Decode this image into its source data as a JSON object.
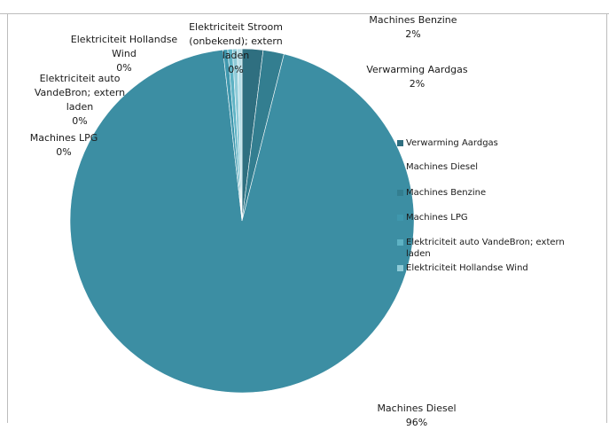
{
  "chart_data": {
    "type": "pie",
    "title": "",
    "slices": [
      {
        "label": "Machines Diesel",
        "value": 96,
        "value_label": "96%",
        "color": "#3c8ea3"
      },
      {
        "label": "Verwarming Aardgas",
        "value": 2,
        "value_label": "2%",
        "color": "#2f6f80"
      },
      {
        "label": "Machines Benzine",
        "value": 2,
        "value_label": "2%",
        "color": "#337e90"
      },
      {
        "label": "Machines LPG",
        "value": 0,
        "value_label": "0%",
        "color": "#3f97ad"
      },
      {
        "label": "Elektriciteit auto VandeBron; extern laden",
        "value": 0,
        "value_label": "0%",
        "color": "#5eb2c4"
      },
      {
        "label": "Elektriciteit Hollandse Wind",
        "value": 0,
        "value_label": "0%",
        "color": "#8fcbd8"
      },
      {
        "label": "Elektriciteit Stroom (onbekend); extern laden",
        "value": 0,
        "value_label": "0%",
        "color": "#b8dfe8"
      }
    ],
    "legend": {
      "position": "right",
      "items": [
        {
          "label": "Verwarming Aardgas",
          "color": "#2f6f80"
        },
        {
          "label": "Machines Diesel",
          "color": "#3c8ea3"
        },
        {
          "label": "Machines Benzine",
          "color": "#337e90"
        },
        {
          "label": "Machines LPG",
          "color": "#3f97ad"
        },
        {
          "label": "Elektriciteit auto VandeBron; extern laden",
          "color": "#5eb2c4"
        },
        {
          "label": "Elektriciteit Hollandse Wind",
          "color": "#8fcbd8"
        }
      ]
    }
  }
}
